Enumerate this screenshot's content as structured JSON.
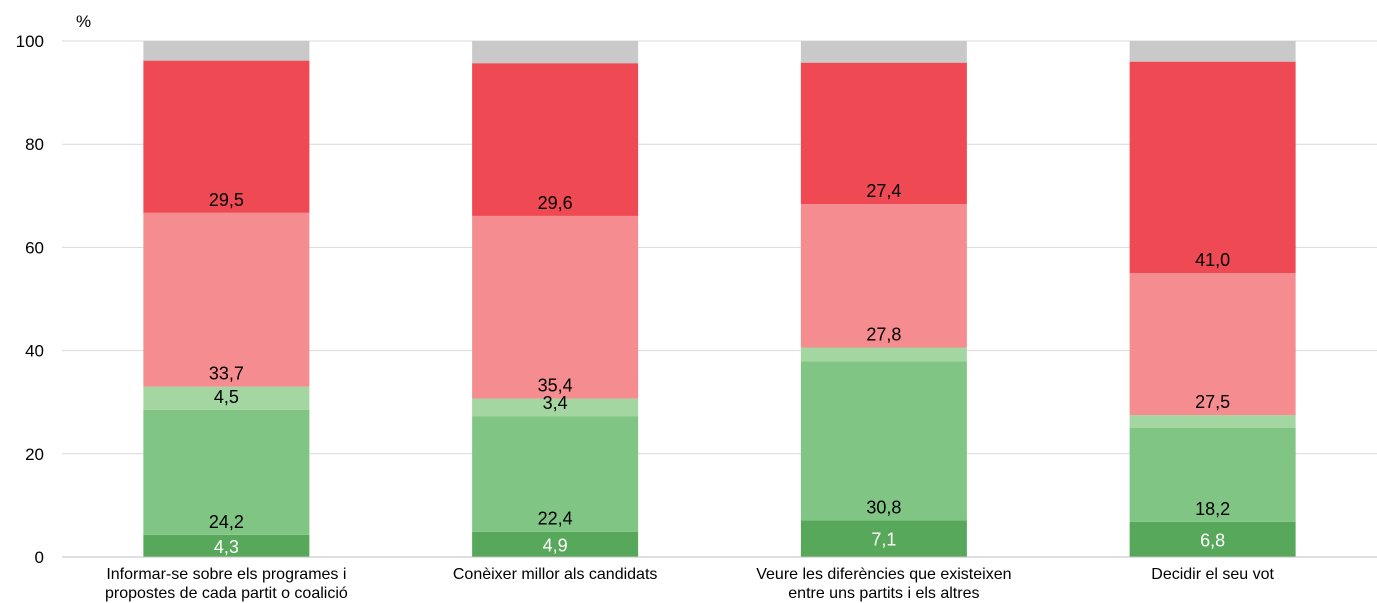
{
  "chart_data": {
    "type": "bar",
    "stacked": true,
    "ylabel": "%",
    "ylim": [
      0,
      100
    ],
    "yticks": [
      0,
      20,
      40,
      60,
      80,
      100
    ],
    "grid": true,
    "legend": "none",
    "categories": [
      [
        "Informar-se sobre els programes i",
        "propostes de cada partit o coalició"
      ],
      [
        "Conèixer millor als candidats"
      ],
      [
        "Veure les diferències que existeixen",
        "entre uns partits i els altres"
      ],
      [
        "Decidir el seu vot"
      ]
    ],
    "series": [
      {
        "values": [
          4.3,
          4.9,
          7.1,
          6.8
        ],
        "labels": [
          "4,3",
          "4,9",
          "7,1",
          "6,8"
        ],
        "color": "#57a85a",
        "label_color": "#ffffff"
      },
      {
        "values": [
          24.2,
          22.4,
          30.8,
          18.2
        ],
        "labels": [
          "24,2",
          "22,4",
          "30,8",
          "18,2"
        ],
        "color": "#80c584",
        "label_color": "#000000"
      },
      {
        "values": [
          4.5,
          3.4,
          2.7,
          2.5
        ],
        "labels": [
          "4,5",
          "3,4",
          "",
          ""
        ],
        "color": "#a3d6a0",
        "label_color": "#000000"
      },
      {
        "values": [
          33.7,
          35.4,
          27.8,
          27.5
        ],
        "labels": [
          "33,7",
          "35,4",
          "27,8",
          "27,5"
        ],
        "color": "#f48c90",
        "label_color": "#000000"
      },
      {
        "values": [
          29.5,
          29.6,
          27.4,
          41.0
        ],
        "labels": [
          "29,5",
          "29,6",
          "27,4",
          "41,0"
        ],
        "color": "#ef4a53",
        "label_color": "#000000"
      },
      {
        "values": [
          3.8,
          4.3,
          4.2,
          4.0
        ],
        "labels": [
          "",
          "",
          "",
          ""
        ],
        "color": "#c9c9c9",
        "label_color": "#000000"
      }
    ]
  }
}
